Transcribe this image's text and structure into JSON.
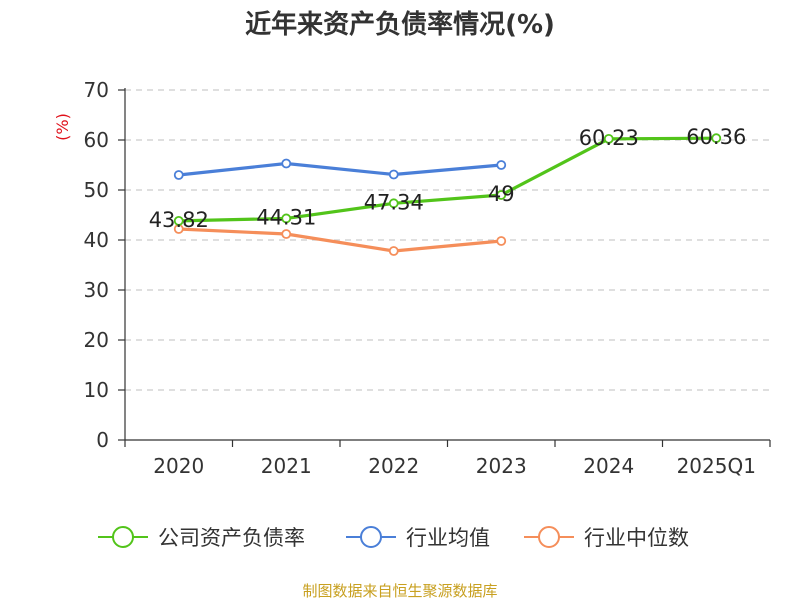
{
  "chart_data": {
    "type": "line",
    "title": "近年来资产负债率情况(%)",
    "ylabel": "(%)",
    "xlabel": "",
    "categories": [
      "2020",
      "2021",
      "2022",
      "2023",
      "2024",
      "2025Q1"
    ],
    "ylim": [
      0,
      70
    ],
    "yticks": [
      0,
      10,
      20,
      30,
      40,
      50,
      60,
      70
    ],
    "grid": true,
    "legend_position": "bottom",
    "series": [
      {
        "name": "公司资产负债率",
        "color": "#52c41a",
        "values": [
          43.82,
          44.31,
          47.34,
          49,
          60.23,
          60.36
        ],
        "labels": [
          "43.82",
          "44.31",
          "47.34",
          "49",
          "60.23",
          "60.36"
        ]
      },
      {
        "name": "行业均值",
        "color": "#4a7fd8",
        "values": [
          53.0,
          55.3,
          53.1,
          55.0,
          null,
          null
        ]
      },
      {
        "name": "行业中位数",
        "color": "#f58e5a",
        "values": [
          42.2,
          41.2,
          37.8,
          39.8,
          null,
          null
        ]
      }
    ]
  },
  "footer": {
    "source": "制图数据来自恒生聚源数据库"
  }
}
